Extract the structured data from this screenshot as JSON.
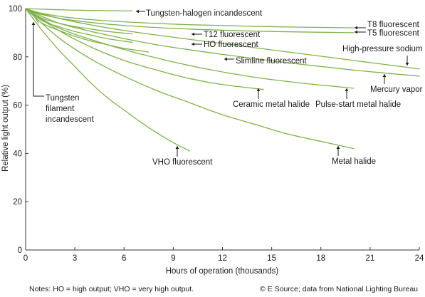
{
  "chart_data": {
    "type": "line",
    "xlabel": "Hours of operation (thousands)",
    "ylabel": "Relative light output (%)",
    "xlim": [
      0,
      24
    ],
    "ylim": [
      0,
      100
    ],
    "xticks": [
      0,
      3,
      6,
      9,
      12,
      15,
      18,
      21,
      24
    ],
    "yticks": [
      0,
      20,
      40,
      60,
      80,
      100
    ],
    "grid": false,
    "line_color": "#7fb24a",
    "series": [
      {
        "name": "Tungsten filament incandescent",
        "x": [
          0,
          0.2,
          0.4,
          0.6,
          0.8
        ],
        "y": [
          100,
          99,
          98,
          96,
          94
        ]
      },
      {
        "name": "Tungsten-halogen incandescent",
        "x": [
          0,
          2,
          4,
          6.5
        ],
        "y": [
          100,
          99.5,
          99.2,
          99
        ]
      },
      {
        "name": "T8 fluorescent",
        "x": [
          0,
          1,
          3,
          6,
          10,
          15,
          20
        ],
        "y": [
          100,
          98,
          96,
          94.5,
          93.3,
          92.5,
          92
        ]
      },
      {
        "name": "T5 fluorescent",
        "x": [
          0,
          1,
          3,
          6,
          10,
          15,
          20
        ],
        "y": [
          100,
          97.5,
          95,
          93,
          91.5,
          90.5,
          90
        ]
      },
      {
        "name": "T12 fluorescent",
        "x": [
          0,
          1,
          2,
          3,
          4,
          5,
          6.5
        ],
        "y": [
          100,
          96,
          94,
          92.5,
          91.5,
          90.5,
          89.5
        ]
      },
      {
        "name": "HO fluorescent",
        "x": [
          0,
          1,
          2,
          3,
          4,
          5,
          6.5
        ],
        "y": [
          100,
          95,
          92.5,
          90.5,
          89,
          87.5,
          86
        ]
      },
      {
        "name": "Slimline fluorescent",
        "x": [
          0,
          1,
          2,
          3,
          4,
          5,
          6,
          7.5
        ],
        "y": [
          100,
          94,
          91,
          88.5,
          86.5,
          85,
          83.5,
          82
        ]
      },
      {
        "name": "High-pressure sodium",
        "x": [
          0,
          2,
          5,
          8,
          12,
          16,
          20,
          24
        ],
        "y": [
          100,
          96,
          92,
          89,
          85.5,
          82,
          78.5,
          75
        ]
      },
      {
        "name": "Mercury vapor",
        "x": [
          0,
          2,
          5,
          8,
          12,
          16,
          20,
          24
        ],
        "y": [
          100,
          94,
          89,
          85,
          81,
          77.5,
          74.5,
          72
        ]
      },
      {
        "name": "Pulse-start metal halide",
        "x": [
          0,
          2,
          5,
          8,
          11,
          14,
          17,
          20
        ],
        "y": [
          100,
          92,
          85,
          79.5,
          75,
          71.5,
          69,
          67
        ]
      },
      {
        "name": "Ceramic metal halide",
        "x": [
          0,
          2,
          4,
          6,
          8,
          10,
          12,
          14.5
        ],
        "y": [
          100,
          91,
          84,
          78.5,
          74.5,
          71,
          68.5,
          66.5
        ]
      },
      {
        "name": "Metal halide",
        "x": [
          0,
          2,
          4,
          6,
          8,
          10,
          12,
          14,
          16,
          18,
          20
        ],
        "y": [
          100,
          88,
          79,
          72,
          66,
          61,
          56,
          52,
          48,
          45,
          42
        ]
      },
      {
        "name": "VHO fluorescent",
        "x": [
          0,
          1,
          2,
          3,
          4,
          5,
          6,
          7,
          8,
          9,
          10
        ],
        "y": [
          100,
          91,
          83,
          76,
          69,
          63,
          58,
          53,
          48.5,
          44.5,
          41
        ]
      }
    ],
    "annotations": [
      {
        "text": "Tungsten-halogen incandescent",
        "x": 6.2,
        "y": 99,
        "arrow": "left"
      },
      {
        "text": "T8 fluorescent",
        "x": 19.6,
        "y": 92,
        "arrow": "left"
      },
      {
        "text": "T5 fluorescent",
        "x": 19.6,
        "y": 90,
        "arrow": "left"
      },
      {
        "text": "T12 fluorescent",
        "x": 6.3,
        "y": 89.5,
        "arrow": "left"
      },
      {
        "text": "HO fluorescent",
        "x": 6.3,
        "y": 86,
        "arrow": "left"
      },
      {
        "text": "Slimline fluorescent",
        "x": 7.5,
        "y": 82,
        "arrow": "left"
      },
      {
        "text": "High-pressure sodium",
        "x": 23.5,
        "y": 76,
        "arrow": "down"
      },
      {
        "text": "Mercury vapor",
        "x": 21.9,
        "y": 72.5,
        "arrow": "up"
      },
      {
        "text": "Pulse-start metal halide",
        "x": 19.8,
        "y": 66.5,
        "arrow": "up"
      },
      {
        "text": "Ceramic metal halide",
        "x": 14.4,
        "y": 66.5,
        "arrow": "up"
      },
      {
        "text": "Metal halide",
        "x": 19.8,
        "y": 41.5,
        "arrow": "up"
      },
      {
        "text": "VHO fluorescent",
        "x": 9.7,
        "y": 40.5,
        "arrow": "up"
      },
      {
        "text": "Tungsten\nfilament\nincandescent",
        "x": 0.6,
        "y": 94,
        "arrow": "up"
      }
    ]
  },
  "notes": {
    "left": "Notes: HO = high output; VHO = very high output.",
    "right": "© E Source; data from National Lighting Bureau"
  }
}
